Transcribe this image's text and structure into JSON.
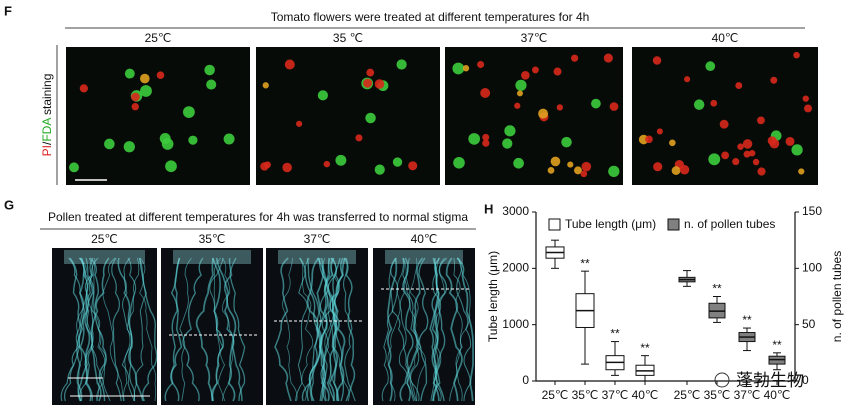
{
  "panel_f": {
    "label": "F",
    "title": "Tomato flowers were treated at different temperatures for 4h",
    "columns": [
      "25℃",
      "35 ℃",
      "37℃",
      "40℃"
    ],
    "y_label": [
      "PI",
      "/",
      "FDA",
      " staining"
    ]
  },
  "panel_g": {
    "label": "G",
    "title": "Pollen treated at different temperatures for 4h was transferred to normal stigma",
    "columns": [
      "25℃",
      "35℃",
      "37℃",
      "40℃"
    ]
  },
  "panel_h": {
    "label": "H"
  },
  "chart_data": {
    "type": "box",
    "y_label": "Tube length (μm)",
    "y2_label": "n. of pollen tubes",
    "ylim": [
      0,
      3000
    ],
    "yticks": [
      0,
      1000,
      2000,
      3000
    ],
    "y2lim": [
      0,
      150
    ],
    "y2ticks": [
      0,
      50,
      100,
      150
    ],
    "series": [
      {
        "name": "Tube length (μm)",
        "color": "#ffffff",
        "axis": "y",
        "categories": [
          "25℃",
          "35℃",
          "37℃",
          "40℃"
        ],
        "min": [
          2000,
          300,
          100,
          0
        ],
        "q1": [
          2180,
          950,
          200,
          100
        ],
        "median": [
          2280,
          1250,
          330,
          180
        ],
        "q3": [
          2380,
          1550,
          450,
          280
        ],
        "max": [
          2500,
          1950,
          700,
          450
        ],
        "significance": [
          null,
          "**",
          "**",
          "**"
        ]
      },
      {
        "name": "n. of pollen tubes",
        "color": "#808080",
        "axis": "y2",
        "categories": [
          "25℃",
          "35℃",
          "37℃",
          "40℃"
        ],
        "min": [
          84,
          52,
          27,
          10
        ],
        "q1": [
          88,
          56,
          35,
          15
        ],
        "median": [
          90,
          62,
          39,
          19
        ],
        "q3": [
          92,
          69,
          43,
          22
        ],
        "max": [
          98,
          75,
          47,
          25
        ],
        "significance": [
          null,
          "**",
          "**",
          "**"
        ]
      }
    ]
  },
  "watermark": "蓬勃生物"
}
